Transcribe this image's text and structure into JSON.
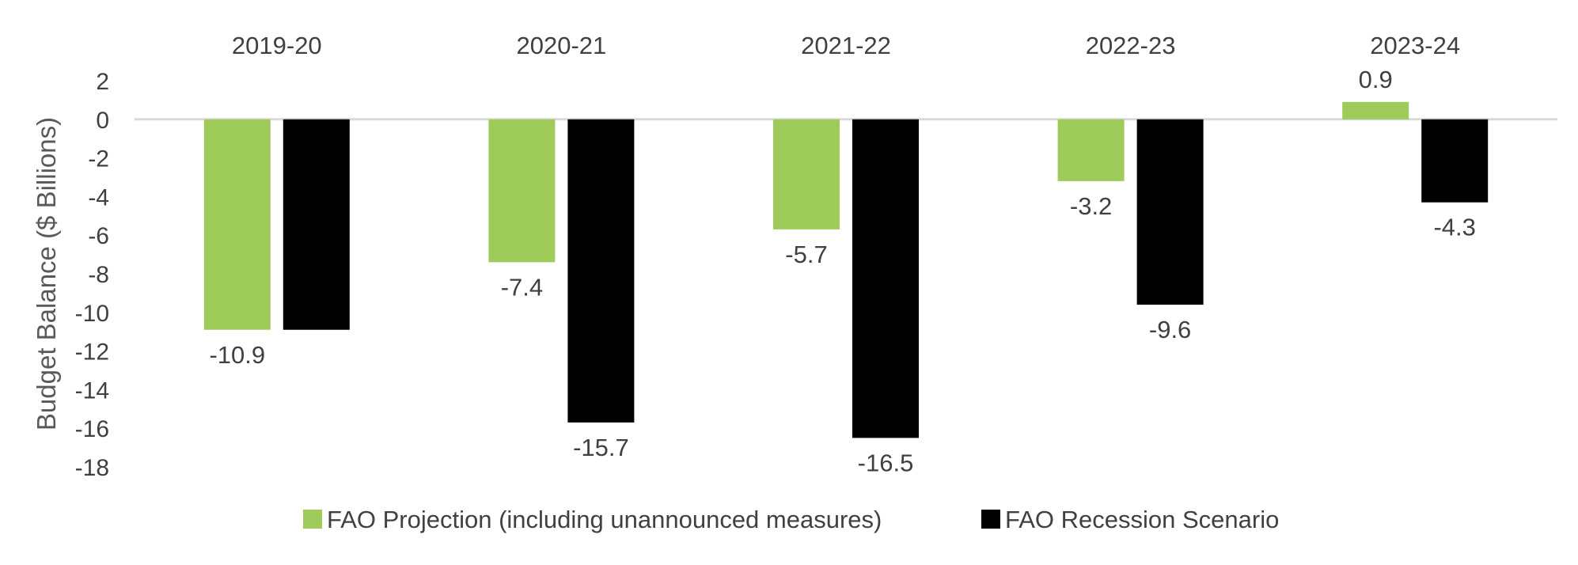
{
  "chart_data": {
    "type": "bar",
    "categories": [
      "2019-20",
      "2020-21",
      "2021-22",
      "2022-23",
      "2023-24"
    ],
    "series": [
      {
        "name": "FAO Projection (including unannounced measures)",
        "values": [
          -10.9,
          -7.4,
          -5.7,
          -3.2,
          0.9
        ],
        "labels": [
          "-10.9",
          "-7.4",
          "-5.7",
          "-3.2",
          "0.9"
        ],
        "color": "#9fcb5a"
      },
      {
        "name": "FAO Recession Scenario",
        "values": [
          -10.9,
          -15.7,
          -16.5,
          -9.6,
          -4.3
        ],
        "labels": [
          "",
          "-15.7",
          "-16.5",
          "-9.6",
          "-4.3"
        ],
        "color": "#000000"
      }
    ],
    "ylabel": "Budget Balance ($ Billions)",
    "xlabel": "",
    "ylim": [
      -18,
      2
    ],
    "yticks": [
      2,
      0,
      -2,
      -4,
      -6,
      -8,
      -10,
      -12,
      -14,
      -16,
      -18
    ],
    "ytick_labels": [
      "2",
      "0",
      "-2",
      "-4",
      "-6",
      "-8",
      "-10",
      "-12",
      "-14",
      "-16",
      "-18"
    ],
    "category_axis_position": "top",
    "grid": false,
    "legend_position": "bottom",
    "zero_line_color": "#d9d9d9"
  }
}
